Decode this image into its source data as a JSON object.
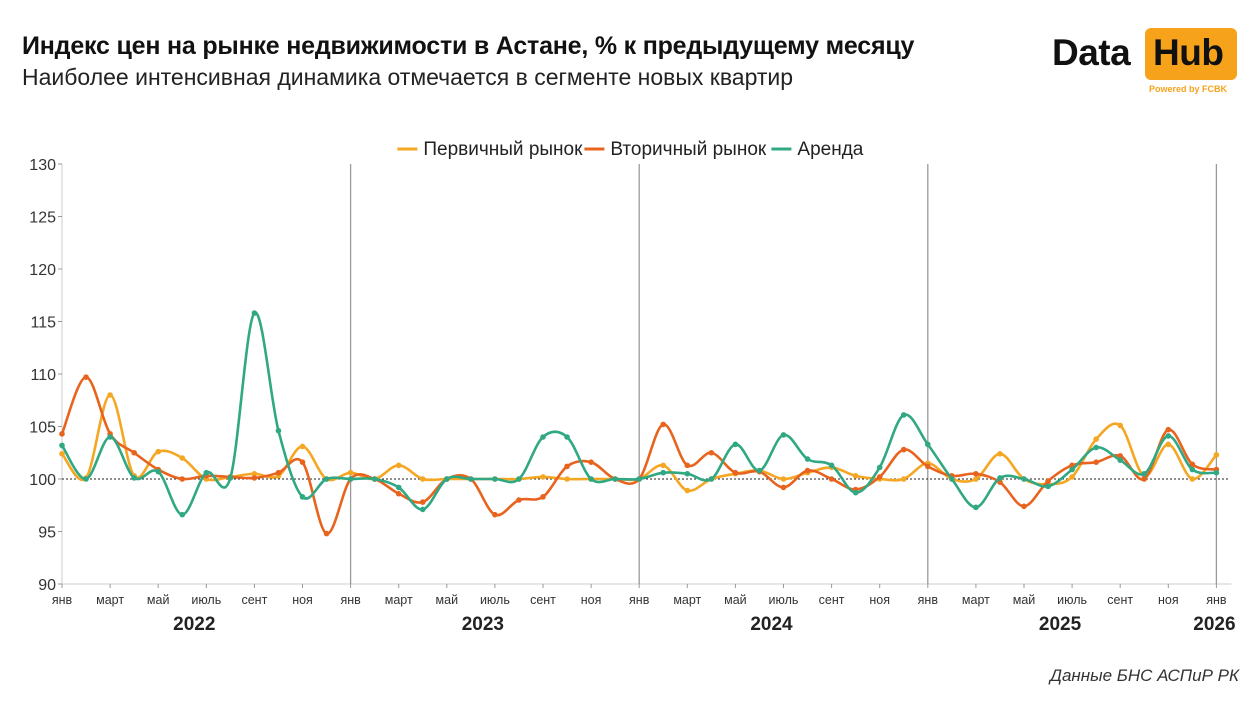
{
  "header": {
    "title": "Индекс цен на рынке недвижимости в Астане, % к предыдущему месяцу",
    "subtitle": "Наиболее интенсивная динамика отмечается в сегменте новых квартир"
  },
  "logo": {
    "word1": "Data",
    "word2": "Hub",
    "powered": "Powered by FCBK",
    "accent_color": "#f7a21b"
  },
  "footer": {
    "source": "Данные БНС АСПиР РК"
  },
  "chart_data": {
    "type": "line",
    "title": "",
    "xlabel": "",
    "ylabel": "",
    "ylim": [
      90,
      130
    ],
    "y_ticks": [
      90,
      95,
      100,
      105,
      110,
      115,
      120,
      125,
      130
    ],
    "baseline": 100,
    "grid": false,
    "legend_position": "top-center",
    "x_tick_labels": [
      "янв",
      "март",
      "май",
      "июль",
      "сент",
      "ноя",
      "янв",
      "март",
      "май",
      "июль",
      "сент",
      "ноя",
      "янв",
      "март",
      "май",
      "июль",
      "сент",
      "ноя",
      "янв",
      "март",
      "май",
      "июль",
      "сент",
      "ноя",
      "янв"
    ],
    "year_labels": [
      "2022",
      "2023",
      "2024",
      "2025",
      "2026"
    ],
    "x": [
      "2022-01",
      "2022-02",
      "2022-03",
      "2022-04",
      "2022-05",
      "2022-06",
      "2022-07",
      "2022-08",
      "2022-09",
      "2022-10",
      "2022-11",
      "2022-12",
      "2023-01",
      "2023-02",
      "2023-03",
      "2023-04",
      "2023-05",
      "2023-06",
      "2023-07",
      "2023-08",
      "2023-09",
      "2023-10",
      "2023-11",
      "2023-12",
      "2024-01",
      "2024-02",
      "2024-03",
      "2024-04",
      "2024-05",
      "2024-06",
      "2024-07",
      "2024-08",
      "2024-09",
      "2024-10",
      "2024-11",
      "2024-12",
      "2025-01",
      "2025-02",
      "2025-03",
      "2025-04",
      "2025-05",
      "2025-06",
      "2025-07",
      "2025-08",
      "2025-09",
      "2025-10",
      "2025-11",
      "2025-12",
      "2026-01"
    ],
    "series": [
      {
        "name": "Первичный рынок",
        "color": "#f5a623",
        "values": [
          102.4,
          100.1,
          108.0,
          100.3,
          102.6,
          102.0,
          100.0,
          100.2,
          100.5,
          100.3,
          103.1,
          100.0,
          100.6,
          100.0,
          101.3,
          100.0,
          100.0,
          100.0,
          100.0,
          100.0,
          100.2,
          100.0,
          100.0,
          100.0,
          100.0,
          101.3,
          98.9,
          100.0,
          100.5,
          100.8,
          100.0,
          100.6,
          101.1,
          100.3,
          100.0,
          100.0,
          101.5,
          100.0,
          100.0,
          102.4,
          100.0,
          99.5,
          100.2,
          103.8,
          105.1,
          100.3,
          103.3,
          100.0,
          102.3
        ]
      },
      {
        "name": "Вторичный рынок",
        "color": "#e8641e",
        "values": [
          104.3,
          109.7,
          104.3,
          102.5,
          100.9,
          100.0,
          100.3,
          100.2,
          100.1,
          100.6,
          101.6,
          94.8,
          100.0,
          100.0,
          98.6,
          97.8,
          100.0,
          100.0,
          96.6,
          98.0,
          98.3,
          101.2,
          101.6,
          100.0,
          100.0,
          105.2,
          101.3,
          102.5,
          100.6,
          100.7,
          99.2,
          100.8,
          100.0,
          99.0,
          100.2,
          102.8,
          101.2,
          100.3,
          100.5,
          99.7,
          97.4,
          99.8,
          101.3,
          101.6,
          102.2,
          100.0,
          104.7,
          101.4,
          100.9
        ]
      },
      {
        "name": "Аренда",
        "color": "#30a883",
        "values": [
          103.2,
          100.0,
          104.0,
          100.1,
          100.7,
          96.6,
          100.6,
          100.1,
          115.8,
          104.6,
          98.3,
          100.0,
          100.0,
          100.0,
          99.2,
          97.1,
          100.0,
          100.0,
          100.0,
          100.0,
          104.0,
          104.0,
          100.0,
          100.0,
          100.0,
          100.6,
          100.5,
          100.0,
          103.3,
          100.8,
          104.2,
          101.9,
          101.3,
          98.7,
          101.1,
          106.1,
          103.3,
          100.0,
          97.3,
          100.1,
          100.0,
          99.3,
          100.9,
          103.0,
          101.8,
          100.5,
          104.1,
          100.9,
          100.6
        ]
      }
    ]
  }
}
